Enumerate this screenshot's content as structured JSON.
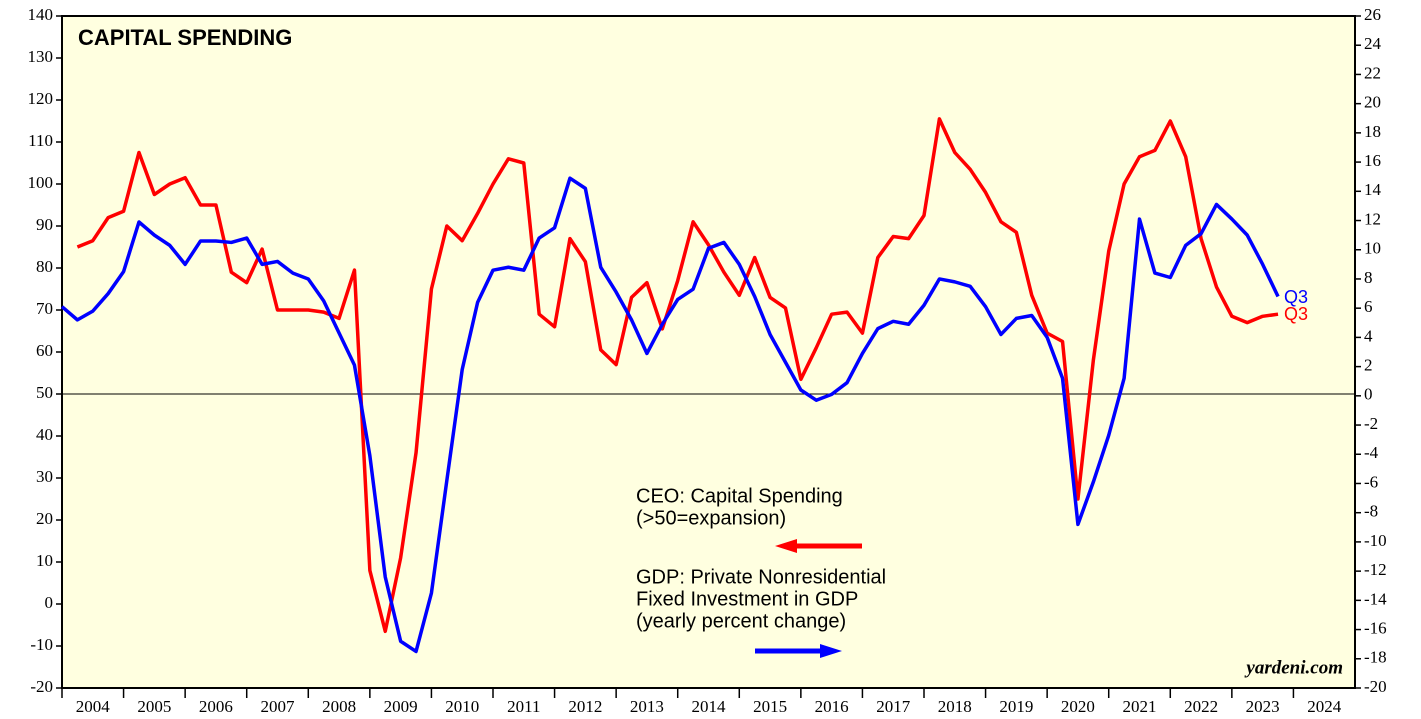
{
  "chart_data": {
    "type": "line",
    "title": "CAPITAL SPENDING",
    "source": "yardeni.com",
    "x": [
      2004,
      2004.25,
      2004.5,
      2004.75,
      2005,
      2005.25,
      2005.5,
      2005.75,
      2006,
      2006.25,
      2006.5,
      2006.75,
      2007,
      2007.25,
      2007.5,
      2007.75,
      2008,
      2008.25,
      2008.5,
      2008.75,
      2009,
      2009.25,
      2009.5,
      2009.75,
      2010,
      2010.25,
      2010.5,
      2010.75,
      2011,
      2011.25,
      2011.5,
      2011.75,
      2012,
      2012.25,
      2012.5,
      2012.75,
      2013,
      2013.25,
      2013.5,
      2013.75,
      2014,
      2014.25,
      2014.5,
      2014.75,
      2015,
      2015.25,
      2015.5,
      2015.75,
      2016,
      2016.25,
      2016.5,
      2016.75,
      2017,
      2017.25,
      2017.5,
      2017.75,
      2018,
      2018.25,
      2018.5,
      2018.75,
      2019,
      2019.25,
      2019.5,
      2019.75,
      2020,
      2020.25,
      2020.5,
      2020.75,
      2021,
      2021.25,
      2021.5,
      2021.75,
      2022,
      2022.25,
      2022.5,
      2022.75,
      2023,
      2023.25,
      2023.5,
      2023.75
    ],
    "series": [
      {
        "name": [
          "CEO: Capital Spending",
          "(>50=expansion)"
        ],
        "color": "#ff0000",
        "axis": "y",
        "end_label": "Q3",
        "values": [
          null,
          85,
          86.5,
          92,
          93.5,
          107.5,
          97.5,
          100,
          101.5,
          95,
          95,
          79,
          76.5,
          84.5,
          70,
          70,
          70,
          69.5,
          68,
          79.5,
          8,
          -6.5,
          11,
          36,
          75,
          90,
          86.5,
          93,
          100,
          106,
          105,
          69,
          66,
          87,
          81.5,
          60.5,
          57,
          73,
          76.5,
          65.5,
          77,
          91,
          85.5,
          79,
          73.5,
          82.5,
          73,
          70.5,
          53.5,
          61,
          69,
          69.5,
          64.5,
          82.5,
          87.5,
          87,
          92.5,
          115.5,
          107.5,
          103.5,
          98,
          91,
          88.5,
          73.5,
          64.5,
          62.5,
          25,
          58,
          84,
          100,
          106.5,
          108,
          115,
          106.5,
          87,
          75.5,
          68.5,
          67,
          68.5,
          69
        ]
      },
      {
        "name": [
          "GDP: Private Nonresidential",
          "Fixed Investment in GDP",
          "(yearly percent change)"
        ],
        "color": "#0000ff",
        "axis": "y2",
        "end_label": "Q3",
        "values": [
          6.1,
          5.2,
          5.8,
          7.0,
          8.5,
          11.9,
          11.0,
          10.3,
          9.0,
          10.6,
          10.6,
          10.5,
          10.8,
          9.0,
          9.2,
          8.4,
          8.0,
          6.5,
          4.3,
          2.1,
          -4.1,
          -12.4,
          -16.8,
          -17.5,
          -13.5,
          -5.8,
          1.8,
          6.4,
          8.6,
          8.8,
          8.6,
          10.8,
          11.5,
          14.9,
          14.2,
          8.8,
          7.1,
          5.2,
          2.9,
          4.9,
          6.6,
          7.3,
          10.1,
          10.5,
          9.0,
          6.8,
          4.2,
          2.3,
          0.4,
          -0.3,
          0.1,
          0.9,
          2.9,
          4.6,
          5.1,
          4.9,
          6.2,
          8.0,
          7.8,
          7.5,
          6.1,
          4.2,
          5.3,
          5.5,
          4.0,
          1.2,
          -8.8,
          -5.9,
          -2.7,
          1.2,
          12.1,
          8.4,
          8.1,
          10.3,
          11.1,
          13.1,
          12.1,
          11.0,
          9.0,
          6.8
        ]
      }
    ],
    "xlim": [
      2004,
      2025
    ],
    "xticks": [
      2004,
      2005,
      2006,
      2007,
      2008,
      2009,
      2010,
      2011,
      2012,
      2013,
      2014,
      2015,
      2016,
      2017,
      2018,
      2019,
      2020,
      2021,
      2022,
      2023,
      2024
    ],
    "ylim": [
      -20,
      140
    ],
    "yticks": [
      -20,
      -10,
      0,
      10,
      20,
      30,
      40,
      50,
      60,
      70,
      80,
      90,
      100,
      110,
      120,
      130,
      140
    ],
    "y2lim": [
      -20,
      26
    ],
    "y2ticks": [
      -20,
      -18,
      -16,
      -14,
      -12,
      -10,
      -8,
      -6,
      -4,
      -2,
      0,
      2,
      4,
      6,
      8,
      10,
      12,
      14,
      16,
      18,
      20,
      22,
      24,
      26
    ],
    "reference_line": 50
  }
}
